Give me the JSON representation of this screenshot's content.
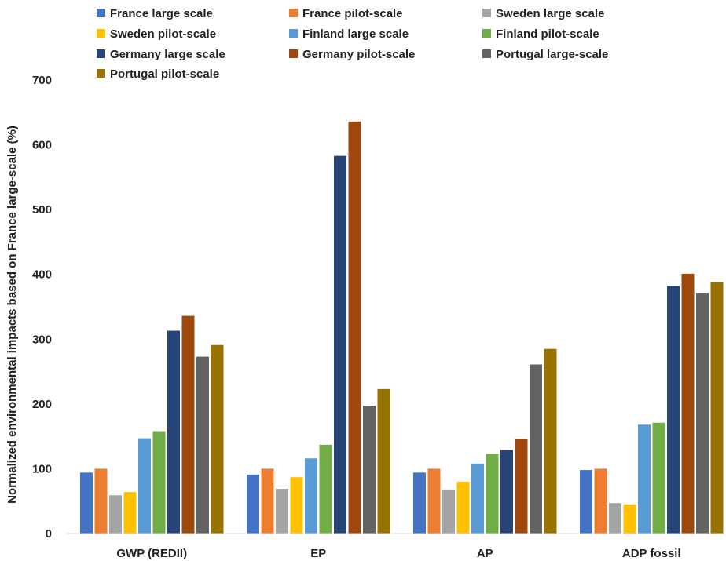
{
  "chart_data": {
    "type": "bar",
    "title": "",
    "xlabel": "",
    "ylabel": "Normalized environmental impacts based on France large-scale (%)",
    "ylim": [
      0,
      700
    ],
    "yticks": [
      0,
      100,
      200,
      300,
      400,
      500,
      600,
      700
    ],
    "grid": false,
    "legend_position": "top",
    "categories": [
      "GWP (REDII)",
      "EP",
      "AP",
      "ADP fossil"
    ],
    "series": [
      {
        "name": "France large scale",
        "color": "#4472C4",
        "values": [
          94,
          91,
          94,
          98
        ]
      },
      {
        "name": "France pilot-scale",
        "color": "#ED7D31",
        "values": [
          100,
          100,
          100,
          100
        ]
      },
      {
        "name": "Sweden large scale",
        "color": "#A5A5A5",
        "values": [
          59,
          69,
          68,
          47
        ]
      },
      {
        "name": "Sweden pilot-scale",
        "color": "#FFC000",
        "values": [
          64,
          87,
          80,
          45
        ]
      },
      {
        "name": "Finland large scale",
        "color": "#5B9BD5",
        "values": [
          147,
          116,
          108,
          168
        ]
      },
      {
        "name": "Finland pilot-scale",
        "color": "#70AD47",
        "values": [
          158,
          137,
          123,
          171
        ]
      },
      {
        "name": "Germany large scale",
        "color": "#264478",
        "values": [
          313,
          583,
          129,
          382
        ]
      },
      {
        "name": "Germany pilot-scale",
        "color": "#9E480E",
        "values": [
          336,
          636,
          146,
          401
        ]
      },
      {
        "name": "Portugal large-scale",
        "color": "#636363",
        "values": [
          273,
          197,
          261,
          371
        ]
      },
      {
        "name": "Portugal pilot-scale",
        "color": "#997300",
        "values": [
          291,
          223,
          285,
          388
        ]
      }
    ]
  }
}
